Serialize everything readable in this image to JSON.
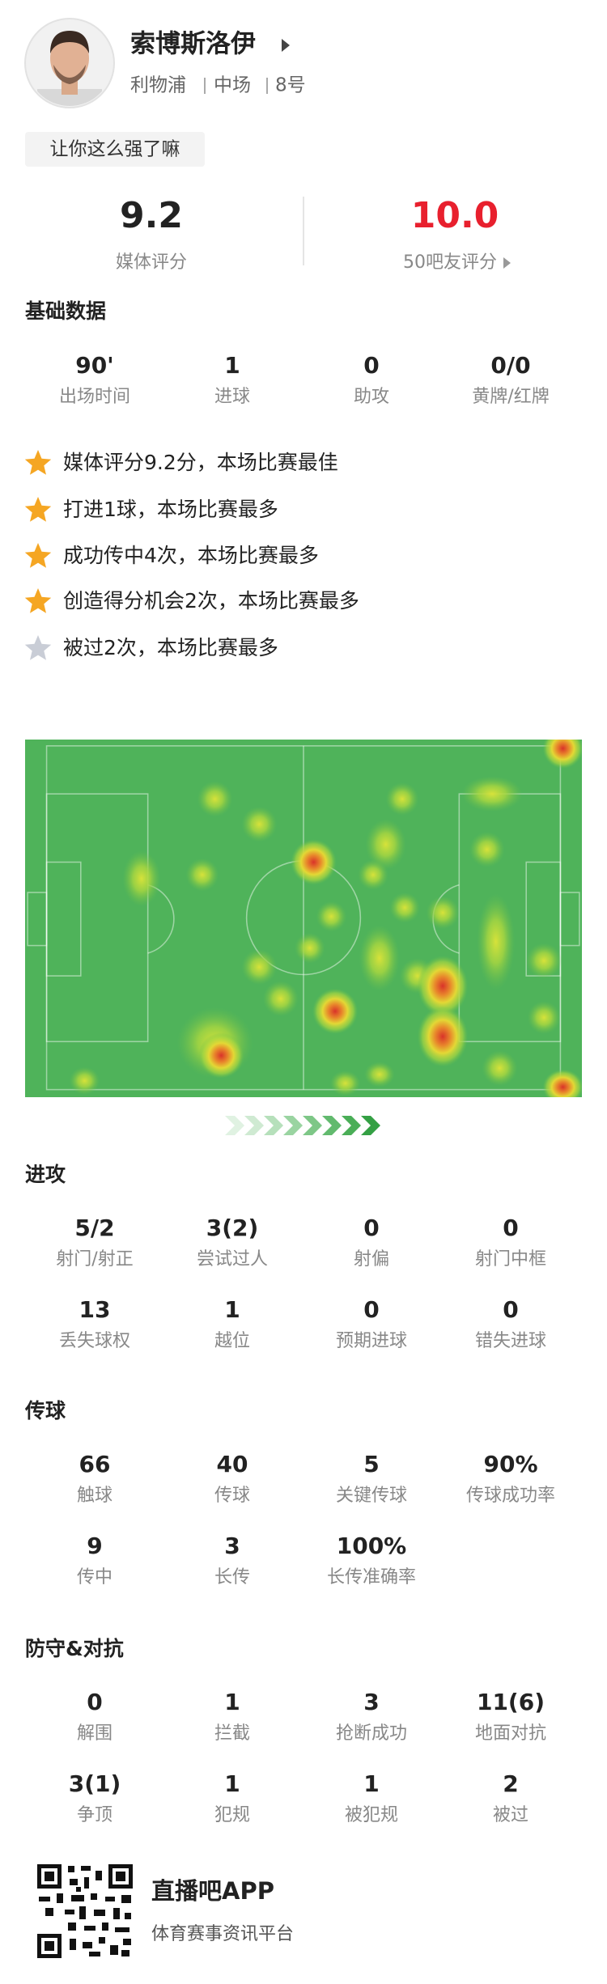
{
  "header": {
    "name": "索博斯洛伊",
    "team": "利物浦",
    "position": "中场",
    "number": "8号",
    "tagline": "让你这么强了嘛"
  },
  "ratings": [
    {
      "value": "9.2",
      "label": "媒体评分",
      "color": "#222222"
    },
    {
      "value": "10.0",
      "label": "50吧友评分",
      "color": "#e8202e"
    }
  ],
  "basic": {
    "title": "基础数据",
    "items": [
      {
        "value": "90'",
        "label": "出场时间"
      },
      {
        "value": "1",
        "label": "进球"
      },
      {
        "value": "0",
        "label": "助攻"
      },
      {
        "value": "0/0",
        "label": "黄牌/红牌"
      }
    ]
  },
  "highlights": [
    {
      "text": "媒体评分9.2分，本场比赛最佳",
      "star_color": "#f5a623"
    },
    {
      "text": "打进1球，本场比赛最多",
      "star_color": "#f5a623"
    },
    {
      "text": "成功传中4次，本场比赛最多",
      "star_color": "#f5a623"
    },
    {
      "text": "创造得分机会2次，本场比赛最多",
      "star_color": "#f5a623"
    },
    {
      "text": "被过2次，本场比赛最多",
      "star_color": "#c9cdd6"
    }
  ],
  "sections": [
    {
      "title": "进攻",
      "items": [
        {
          "value": "5/2",
          "label": "射门/射正"
        },
        {
          "value": "3(2)",
          "label": "尝试过人"
        },
        {
          "value": "0",
          "label": "射偏"
        },
        {
          "value": "0",
          "label": "射门中框"
        },
        {
          "value": "13",
          "label": "丢失球权"
        },
        {
          "value": "1",
          "label": "越位"
        },
        {
          "value": "0",
          "label": "预期进球"
        },
        {
          "value": "0",
          "label": "错失进球"
        }
      ]
    },
    {
      "title": "传球",
      "items": [
        {
          "value": "66",
          "label": "触球"
        },
        {
          "value": "40",
          "label": "传球"
        },
        {
          "value": "5",
          "label": "关键传球"
        },
        {
          "value": "90%",
          "label": "传球成功率"
        },
        {
          "value": "9",
          "label": "传中"
        },
        {
          "value": "3",
          "label": "长传"
        },
        {
          "value": "100%",
          "label": "长传准确率"
        }
      ]
    },
    {
      "title": "防守&对抗",
      "items": [
        {
          "value": "0",
          "label": "解围"
        },
        {
          "value": "1",
          "label": "拦截"
        },
        {
          "value": "3",
          "label": "抢断成功"
        },
        {
          "value": "11(6)",
          "label": "地面对抗"
        },
        {
          "value": "3(1)",
          "label": "争顶"
        },
        {
          "value": "1",
          "label": "犯规"
        },
        {
          "value": "1",
          "label": "被犯规"
        },
        {
          "value": "2",
          "label": "被过"
        }
      ]
    }
  ],
  "footer": {
    "app": "直播吧APP",
    "slogan": "体育赛事资讯平台"
  }
}
